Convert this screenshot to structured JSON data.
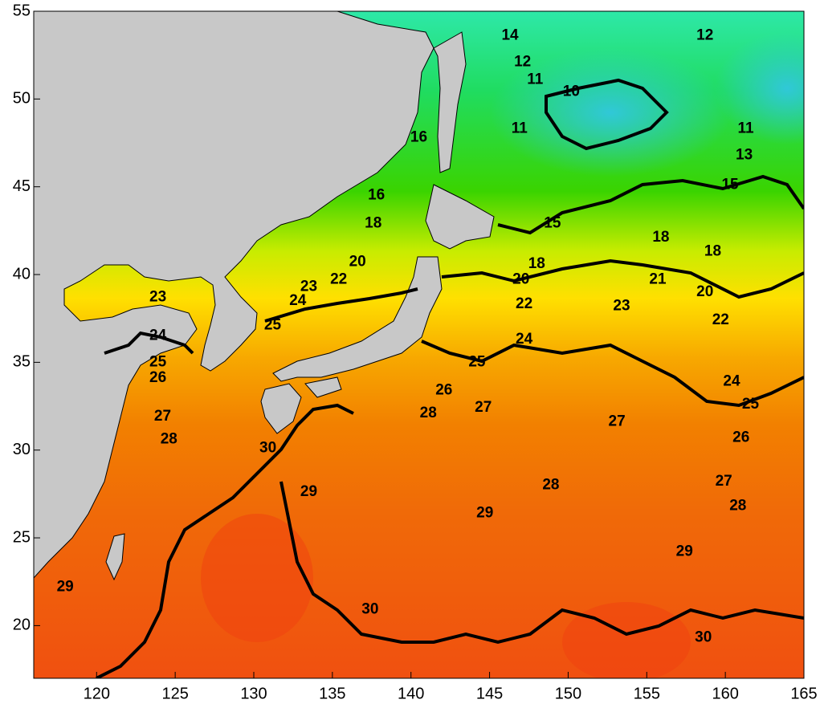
{
  "chart_data": {
    "type": "contour",
    "xlim": [
      116,
      165
    ],
    "ylim": [
      17,
      55
    ],
    "xticks": [
      120,
      125,
      130,
      135,
      140,
      145,
      150,
      155,
      160,
      165
    ],
    "yticks": [
      20,
      25,
      30,
      35,
      40,
      45,
      50,
      55
    ],
    "labels": [
      {
        "value": 14,
        "x": 146.3,
        "y": 53.6
      },
      {
        "value": 12,
        "x": 158.7,
        "y": 53.6
      },
      {
        "value": 12,
        "x": 147.1,
        "y": 52.1
      },
      {
        "value": 11,
        "x": 147.9,
        "y": 51.1
      },
      {
        "value": 10,
        "x": 150.2,
        "y": 50.4
      },
      {
        "value": 11,
        "x": 146.9,
        "y": 48.3
      },
      {
        "value": 11,
        "x": 161.3,
        "y": 48.3
      },
      {
        "value": 16,
        "x": 140.5,
        "y": 47.8
      },
      {
        "value": 13,
        "x": 161.2,
        "y": 46.8
      },
      {
        "value": 15,
        "x": 160.3,
        "y": 45.1
      },
      {
        "value": 16,
        "x": 137.8,
        "y": 44.5
      },
      {
        "value": 18,
        "x": 137.6,
        "y": 42.9
      },
      {
        "value": 15,
        "x": 149.0,
        "y": 42.9
      },
      {
        "value": 18,
        "x": 155.9,
        "y": 42.1
      },
      {
        "value": 18,
        "x": 159.2,
        "y": 41.3
      },
      {
        "value": 20,
        "x": 136.6,
        "y": 40.7
      },
      {
        "value": 18,
        "x": 148.0,
        "y": 40.6
      },
      {
        "value": 22,
        "x": 135.4,
        "y": 39.7
      },
      {
        "value": 20,
        "x": 147.0,
        "y": 39.7
      },
      {
        "value": 21,
        "x": 155.7,
        "y": 39.7
      },
      {
        "value": 20,
        "x": 158.7,
        "y": 39.0
      },
      {
        "value": 23,
        "x": 133.5,
        "y": 39.3
      },
      {
        "value": 24,
        "x": 132.8,
        "y": 38.5
      },
      {
        "value": 22,
        "x": 147.2,
        "y": 38.3
      },
      {
        "value": 23,
        "x": 153.4,
        "y": 38.2
      },
      {
        "value": 22,
        "x": 159.7,
        "y": 37.4
      },
      {
        "value": 25,
        "x": 131.2,
        "y": 37.1
      },
      {
        "value": 23,
        "x": 123.9,
        "y": 38.7
      },
      {
        "value": 24,
        "x": 123.9,
        "y": 36.5
      },
      {
        "value": 25,
        "x": 123.9,
        "y": 35.0
      },
      {
        "value": 26,
        "x": 123.9,
        "y": 34.1
      },
      {
        "value": 24,
        "x": 147.2,
        "y": 36.3
      },
      {
        "value": 25,
        "x": 144.2,
        "y": 35.0
      },
      {
        "value": 24,
        "x": 160.4,
        "y": 33.9
      },
      {
        "value": 26,
        "x": 142.1,
        "y": 33.4
      },
      {
        "value": 25,
        "x": 161.6,
        "y": 32.6
      },
      {
        "value": 28,
        "x": 141.1,
        "y": 32.1
      },
      {
        "value": 27,
        "x": 144.6,
        "y": 32.4
      },
      {
        "value": 27,
        "x": 153.1,
        "y": 31.6
      },
      {
        "value": 27,
        "x": 124.2,
        "y": 31.9
      },
      {
        "value": 28,
        "x": 124.6,
        "y": 30.6
      },
      {
        "value": 30,
        "x": 130.9,
        "y": 30.1
      },
      {
        "value": 26,
        "x": 161.0,
        "y": 30.7
      },
      {
        "value": 27,
        "x": 159.9,
        "y": 28.2
      },
      {
        "value": 28,
        "x": 148.9,
        "y": 28.0
      },
      {
        "value": 29,
        "x": 133.5,
        "y": 27.6
      },
      {
        "value": 29,
        "x": 144.7,
        "y": 26.4
      },
      {
        "value": 28,
        "x": 160.8,
        "y": 26.8
      },
      {
        "value": 29,
        "x": 157.4,
        "y": 24.2
      },
      {
        "value": 29,
        "x": 118.0,
        "y": 22.2
      },
      {
        "value": 30,
        "x": 137.4,
        "y": 20.9
      },
      {
        "value": 30,
        "x": 158.6,
        "y": 19.3
      }
    ]
  }
}
